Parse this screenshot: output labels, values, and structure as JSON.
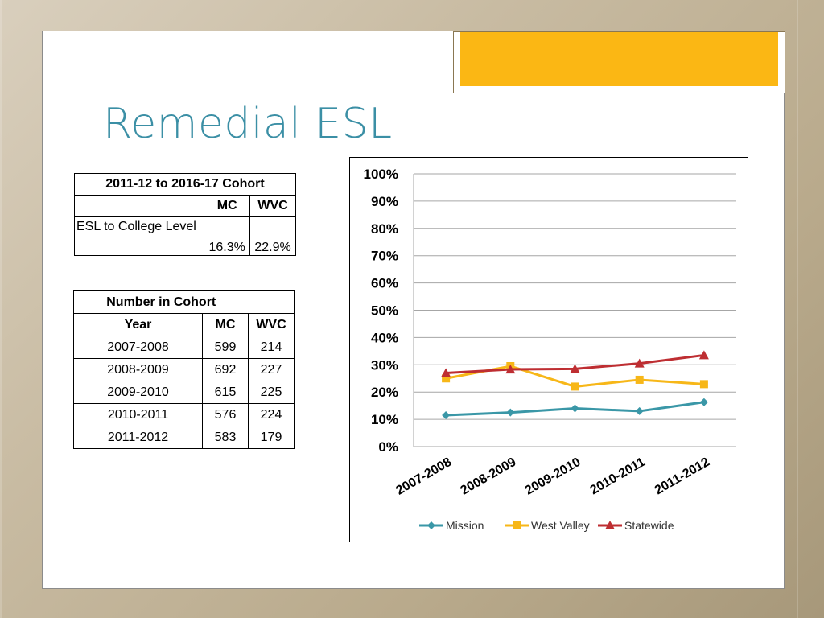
{
  "slide": {
    "title": "Remedial ESL"
  },
  "table1": {
    "header": "2011-12 to 2016-17 Cohort",
    "columns": [
      "MC",
      "WVC"
    ],
    "row_label": "ESL to College Level",
    "values": [
      "16.3%",
      "22.9%"
    ]
  },
  "table2": {
    "header": "Number in Cohort",
    "col_year": "Year",
    "col_mc": "MC",
    "col_wvc": "WVC",
    "rows": [
      {
        "year": "2007-2008",
        "mc": "599",
        "wvc": "214"
      },
      {
        "year": "2008-2009",
        "mc": "692",
        "wvc": "227"
      },
      {
        "year": "2009-2010",
        "mc": "615",
        "wvc": "225"
      },
      {
        "year": "2010-2011",
        "mc": "576",
        "wvc": "224"
      },
      {
        "year": "2011-2012",
        "mc": "583",
        "wvc": "179"
      }
    ]
  },
  "colors": {
    "title": "#3b8fa5",
    "accent": "#fbb714",
    "mission": "#3a97a7",
    "west_valley": "#f7b718",
    "statewide": "#be2e32"
  },
  "chart_data": {
    "type": "line",
    "categories": [
      "2007-2008",
      "2008-2009",
      "2009-2010",
      "2010-2011",
      "2011-2012"
    ],
    "yticks": [
      "0%",
      "10%",
      "20%",
      "30%",
      "40%",
      "50%",
      "60%",
      "70%",
      "80%",
      "90%",
      "100%"
    ],
    "ylim": [
      0,
      100
    ],
    "grid": true,
    "legend_position": "bottom",
    "series": [
      {
        "name": "Mission",
        "marker": "diamond",
        "values": [
          11.5,
          12.5,
          14,
          13,
          16.3
        ]
      },
      {
        "name": "West Valley",
        "marker": "square",
        "values": [
          25,
          29.5,
          22,
          24.5,
          22.9
        ]
      },
      {
        "name": "Statewide",
        "marker": "triangle",
        "values": [
          27,
          28.3,
          28.5,
          30.5,
          33.5
        ]
      }
    ]
  }
}
